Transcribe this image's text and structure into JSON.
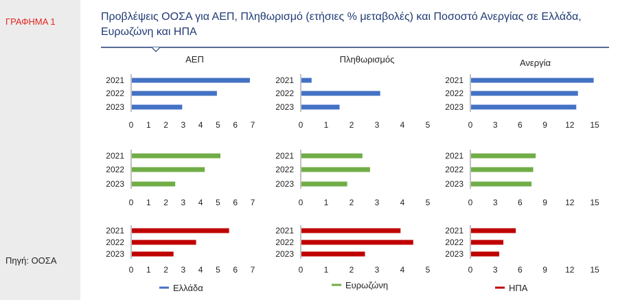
{
  "sidebar": {
    "figure_label": "ΓΡΑΦΗΜΑ 1",
    "source": "Πηγή: ΟΟΣΑ"
  },
  "title": "Προβλέψεις ΟΟΣΑ για ΑΕΠ, Πληθωρισμό (ετήσιες % μεταβολές) και Ποσοστό Ανεργίας σε Ελλάδα, Ευρωζώνη και ΗΠΑ",
  "colors": {
    "Ελλάδα": "#4472c4",
    "Ευρωζώνη": "#70ad47",
    "ΗΠΑ": "#c00000",
    "title": "#1f3a73",
    "rule": "#1f3a73"
  },
  "chart_data": [
    {
      "type": "bar",
      "orientation": "horizontal",
      "title": "ΑΕΠ",
      "region": "Ελλάδα",
      "categories": [
        "2021",
        "2022",
        "2023"
      ],
      "values": [
        6.8,
        4.9,
        2.9
      ],
      "xlim": [
        0,
        7
      ],
      "xticks": [
        0,
        1,
        2,
        3,
        4,
        5,
        6,
        7
      ],
      "grid": false
    },
    {
      "type": "bar",
      "orientation": "horizontal",
      "title": "Πληθωρισμός",
      "region": "Ελλάδα",
      "categories": [
        "2021",
        "2022",
        "2023"
      ],
      "values": [
        0.4,
        3.1,
        1.5
      ],
      "xlim": [
        0,
        5
      ],
      "xticks": [
        0,
        1,
        2,
        3,
        4,
        5
      ],
      "grid": false
    },
    {
      "type": "bar",
      "orientation": "horizontal",
      "title": "Ανεργία",
      "region": "Ελλάδα",
      "categories": [
        "2021",
        "2022",
        "2023"
      ],
      "values": [
        14.8,
        12.9,
        12.7
      ],
      "xlim": [
        0,
        15
      ],
      "xticks": [
        0,
        3,
        6,
        9,
        12,
        15
      ],
      "grid": false
    },
    {
      "type": "bar",
      "orientation": "horizontal",
      "title": "",
      "region": "Ευρωζώνη",
      "categories": [
        "2021",
        "2022",
        "2023"
      ],
      "values": [
        5.1,
        4.2,
        2.5
      ],
      "xlim": [
        0,
        7
      ],
      "xticks": [
        0,
        1,
        2,
        3,
        4,
        5,
        6,
        7
      ],
      "grid": false
    },
    {
      "type": "bar",
      "orientation": "horizontal",
      "title": "",
      "region": "Ευρωζώνη",
      "categories": [
        "2021",
        "2022",
        "2023"
      ],
      "values": [
        2.4,
        2.7,
        1.8
      ],
      "xlim": [
        0,
        5
      ],
      "xticks": [
        0,
        1,
        2,
        3,
        4,
        5
      ],
      "grid": false
    },
    {
      "type": "bar",
      "orientation": "horizontal",
      "title": "",
      "region": "Ευρωζώνη",
      "categories": [
        "2021",
        "2022",
        "2023"
      ],
      "values": [
        7.8,
        7.5,
        7.3
      ],
      "xlim": [
        0,
        15
      ],
      "xticks": [
        0,
        3,
        6,
        9,
        12,
        15
      ],
      "grid": false
    },
    {
      "type": "bar",
      "orientation": "horizontal",
      "title": "",
      "region": "ΗΠΑ",
      "categories": [
        "2021",
        "2022",
        "2023"
      ],
      "values": [
        5.6,
        3.7,
        2.4
      ],
      "xlim": [
        0,
        7
      ],
      "xticks": [
        0,
        1,
        2,
        3,
        4,
        5,
        6,
        7
      ],
      "grid": false
    },
    {
      "type": "bar",
      "orientation": "horizontal",
      "title": "",
      "region": "ΗΠΑ",
      "categories": [
        "2021",
        "2022",
        "2023"
      ],
      "values": [
        3.9,
        4.4,
        2.5
      ],
      "xlim": [
        0,
        5
      ],
      "xticks": [
        0,
        1,
        2,
        3,
        4,
        5
      ],
      "grid": false
    },
    {
      "type": "bar",
      "orientation": "horizontal",
      "title": "",
      "region": "ΗΠΑ",
      "categories": [
        "2021",
        "2022",
        "2023"
      ],
      "values": [
        5.4,
        3.9,
        3.4
      ],
      "xlim": [
        0,
        15
      ],
      "xticks": [
        0,
        3,
        6,
        9,
        12,
        15
      ],
      "grid": false
    }
  ],
  "legend": [
    {
      "name": "Ελλάδα"
    },
    {
      "name": "Ευρωζώνη"
    },
    {
      "name": "ΗΠΑ"
    }
  ]
}
